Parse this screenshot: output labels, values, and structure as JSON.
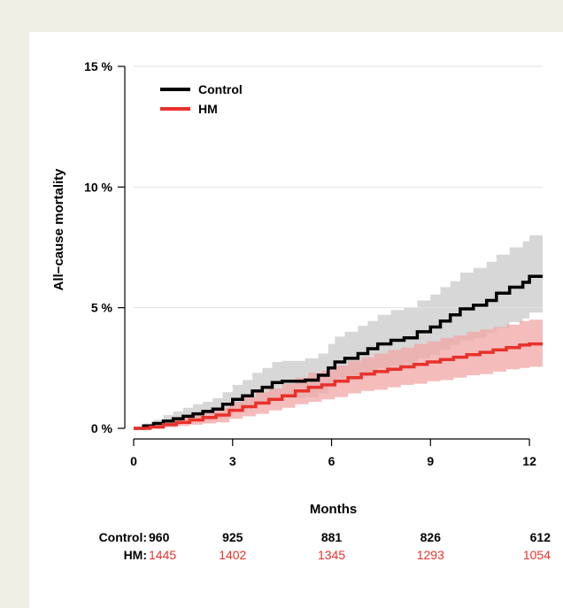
{
  "chart_data": {
    "type": "line",
    "ylabel": "All−cause mortality",
    "xlabel": "Months",
    "xlim": [
      0,
      12.4
    ],
    "ylim": [
      0,
      15
    ],
    "x_ticks": [
      0,
      3,
      6,
      9,
      12
    ],
    "x_tick_labels": [
      "0",
      "3",
      "6",
      "9",
      "12"
    ],
    "y_ticks": [
      0,
      5,
      10,
      15
    ],
    "y_tick_labels": [
      "0 %",
      "5 %",
      "10 %",
      "15 %"
    ],
    "grid": "horizontal",
    "legend_position": "top-left",
    "series": [
      {
        "name": "Control",
        "color": "#000000",
        "band_color": "#c9c9c9",
        "points": [
          [
            0,
            0
          ],
          [
            0.3,
            0.1
          ],
          [
            0.6,
            0.2
          ],
          [
            0.9,
            0.3
          ],
          [
            1.2,
            0.4
          ],
          [
            1.5,
            0.5
          ],
          [
            1.8,
            0.6
          ],
          [
            2.1,
            0.7
          ],
          [
            2.4,
            0.8
          ],
          [
            2.7,
            1.0
          ],
          [
            3.0,
            1.2
          ],
          [
            3.3,
            1.35
          ],
          [
            3.6,
            1.55
          ],
          [
            3.9,
            1.7
          ],
          [
            4.2,
            1.9
          ],
          [
            4.5,
            1.95
          ],
          [
            4.8,
            1.95
          ],
          [
            5.2,
            2.0
          ],
          [
            5.6,
            2.2
          ],
          [
            5.9,
            2.5
          ],
          [
            6.1,
            2.75
          ],
          [
            6.4,
            2.9
          ],
          [
            6.8,
            3.1
          ],
          [
            7.1,
            3.3
          ],
          [
            7.4,
            3.5
          ],
          [
            7.8,
            3.65
          ],
          [
            8.2,
            3.75
          ],
          [
            8.6,
            4.0
          ],
          [
            9.0,
            4.2
          ],
          [
            9.3,
            4.45
          ],
          [
            9.6,
            4.7
          ],
          [
            9.9,
            4.95
          ],
          [
            10.3,
            5.1
          ],
          [
            10.7,
            5.3
          ],
          [
            11.0,
            5.6
          ],
          [
            11.4,
            5.85
          ],
          [
            11.8,
            6.05
          ],
          [
            12.0,
            6.3
          ],
          [
            12.4,
            6.3
          ]
        ],
        "upper": [
          [
            0,
            0
          ],
          [
            0.3,
            0.2
          ],
          [
            0.6,
            0.35
          ],
          [
            0.9,
            0.55
          ],
          [
            1.2,
            0.7
          ],
          [
            1.5,
            0.85
          ],
          [
            1.8,
            1.0
          ],
          [
            2.1,
            1.1
          ],
          [
            2.4,
            1.25
          ],
          [
            2.7,
            1.5
          ],
          [
            3.0,
            1.8
          ],
          [
            3.3,
            2.0
          ],
          [
            3.6,
            2.3
          ],
          [
            3.9,
            2.5
          ],
          [
            4.2,
            2.75
          ],
          [
            4.5,
            2.8
          ],
          [
            4.8,
            2.8
          ],
          [
            5.2,
            2.9
          ],
          [
            5.6,
            3.1
          ],
          [
            5.9,
            3.5
          ],
          [
            6.1,
            3.8
          ],
          [
            6.4,
            4.0
          ],
          [
            6.8,
            4.25
          ],
          [
            7.1,
            4.45
          ],
          [
            7.4,
            4.7
          ],
          [
            7.8,
            4.9
          ],
          [
            8.2,
            5.0
          ],
          [
            8.6,
            5.3
          ],
          [
            9.0,
            5.55
          ],
          [
            9.3,
            5.85
          ],
          [
            9.6,
            6.1
          ],
          [
            9.9,
            6.45
          ],
          [
            10.3,
            6.65
          ],
          [
            10.7,
            6.9
          ],
          [
            11.0,
            7.2
          ],
          [
            11.4,
            7.5
          ],
          [
            11.8,
            7.75
          ],
          [
            12.0,
            8.0
          ],
          [
            12.4,
            8.0
          ]
        ],
        "lower": [
          [
            0,
            0
          ],
          [
            0.3,
            0.0
          ],
          [
            0.6,
            0.05
          ],
          [
            0.9,
            0.1
          ],
          [
            1.2,
            0.15
          ],
          [
            1.5,
            0.2
          ],
          [
            1.8,
            0.25
          ],
          [
            2.1,
            0.3
          ],
          [
            2.4,
            0.4
          ],
          [
            2.7,
            0.55
          ],
          [
            3.0,
            0.7
          ],
          [
            3.3,
            0.8
          ],
          [
            3.6,
            0.95
          ],
          [
            3.9,
            1.05
          ],
          [
            4.2,
            1.2
          ],
          [
            4.5,
            1.25
          ],
          [
            4.8,
            1.25
          ],
          [
            5.2,
            1.3
          ],
          [
            5.6,
            1.45
          ],
          [
            5.9,
            1.7
          ],
          [
            6.1,
            1.9
          ],
          [
            6.4,
            2.0
          ],
          [
            6.8,
            2.15
          ],
          [
            7.1,
            2.3
          ],
          [
            7.4,
            2.5
          ],
          [
            7.8,
            2.6
          ],
          [
            8.2,
            2.7
          ],
          [
            8.6,
            2.9
          ],
          [
            9.0,
            3.05
          ],
          [
            9.3,
            3.25
          ],
          [
            9.6,
            3.45
          ],
          [
            9.9,
            3.65
          ],
          [
            10.3,
            3.75
          ],
          [
            10.7,
            3.95
          ],
          [
            11.0,
            4.15
          ],
          [
            11.4,
            4.4
          ],
          [
            11.8,
            4.55
          ],
          [
            12.0,
            4.8
          ],
          [
            12.4,
            4.8
          ]
        ]
      },
      {
        "name": "HM",
        "color": "#e8312a",
        "band_color": "#f2a5a5",
        "points": [
          [
            0,
            0
          ],
          [
            0.5,
            0.05
          ],
          [
            0.9,
            0.15
          ],
          [
            1.3,
            0.25
          ],
          [
            1.7,
            0.35
          ],
          [
            2.1,
            0.45
          ],
          [
            2.5,
            0.55
          ],
          [
            2.9,
            0.75
          ],
          [
            3.3,
            0.9
          ],
          [
            3.7,
            1.05
          ],
          [
            4.1,
            1.2
          ],
          [
            4.5,
            1.35
          ],
          [
            4.9,
            1.55
          ],
          [
            5.3,
            1.7
          ],
          [
            5.7,
            1.8
          ],
          [
            6.1,
            1.95
          ],
          [
            6.5,
            2.1
          ],
          [
            6.9,
            2.25
          ],
          [
            7.3,
            2.35
          ],
          [
            7.7,
            2.45
          ],
          [
            8.1,
            2.55
          ],
          [
            8.5,
            2.65
          ],
          [
            8.9,
            2.75
          ],
          [
            9.3,
            2.85
          ],
          [
            9.7,
            2.95
          ],
          [
            10.1,
            3.05
          ],
          [
            10.5,
            3.15
          ],
          [
            10.9,
            3.25
          ],
          [
            11.3,
            3.35
          ],
          [
            11.7,
            3.45
          ],
          [
            12.0,
            3.5
          ],
          [
            12.4,
            3.5
          ]
        ],
        "upper": [
          [
            0,
            0
          ],
          [
            0.5,
            0.15
          ],
          [
            0.9,
            0.3
          ],
          [
            1.3,
            0.45
          ],
          [
            1.7,
            0.6
          ],
          [
            2.1,
            0.75
          ],
          [
            2.5,
            0.85
          ],
          [
            2.9,
            1.1
          ],
          [
            3.3,
            1.3
          ],
          [
            3.7,
            1.5
          ],
          [
            4.1,
            1.65
          ],
          [
            4.5,
            1.85
          ],
          [
            4.9,
            2.1
          ],
          [
            5.3,
            2.3
          ],
          [
            5.7,
            2.4
          ],
          [
            6.1,
            2.6
          ],
          [
            6.5,
            2.8
          ],
          [
            6.9,
            2.95
          ],
          [
            7.3,
            3.1
          ],
          [
            7.7,
            3.25
          ],
          [
            8.1,
            3.35
          ],
          [
            8.5,
            3.5
          ],
          [
            8.9,
            3.6
          ],
          [
            9.3,
            3.75
          ],
          [
            9.7,
            3.85
          ],
          [
            10.1,
            4.0
          ],
          [
            10.5,
            4.1
          ],
          [
            10.9,
            4.2
          ],
          [
            11.3,
            4.3
          ],
          [
            11.7,
            4.45
          ],
          [
            12.0,
            4.5
          ],
          [
            12.4,
            4.5
          ]
        ],
        "lower": [
          [
            0,
            0
          ],
          [
            0.5,
            0.0
          ],
          [
            0.9,
            0.05
          ],
          [
            1.3,
            0.1
          ],
          [
            1.7,
            0.15
          ],
          [
            2.1,
            0.2
          ],
          [
            2.5,
            0.25
          ],
          [
            2.9,
            0.4
          ],
          [
            3.3,
            0.5
          ],
          [
            3.7,
            0.6
          ],
          [
            4.1,
            0.75
          ],
          [
            4.5,
            0.85
          ],
          [
            4.9,
            1.0
          ],
          [
            5.3,
            1.1
          ],
          [
            5.7,
            1.2
          ],
          [
            6.1,
            1.3
          ],
          [
            6.5,
            1.45
          ],
          [
            6.9,
            1.55
          ],
          [
            7.3,
            1.6
          ],
          [
            7.7,
            1.7
          ],
          [
            8.1,
            1.8
          ],
          [
            8.5,
            1.85
          ],
          [
            8.9,
            1.95
          ],
          [
            9.3,
            2.0
          ],
          [
            9.7,
            2.1
          ],
          [
            10.1,
            2.2
          ],
          [
            10.5,
            2.25
          ],
          [
            10.9,
            2.35
          ],
          [
            11.3,
            2.45
          ],
          [
            11.7,
            2.5
          ],
          [
            12.0,
            2.55
          ],
          [
            12.4,
            2.55
          ]
        ]
      }
    ],
    "risk_table": {
      "rows": [
        {
          "label": "Control:",
          "color": "#000000",
          "values": [
            "960",
            "925",
            "881",
            "826",
            "612"
          ]
        },
        {
          "label": "HM:",
          "color": "#e8312a",
          "values": [
            "1445",
            "1402",
            "1345",
            "1293",
            "1054"
          ]
        }
      ]
    }
  }
}
